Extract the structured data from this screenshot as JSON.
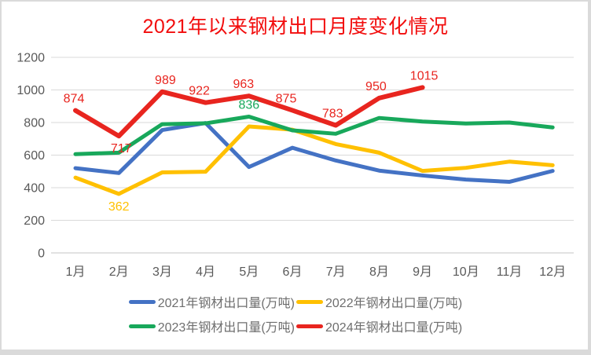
{
  "title": "2021年以来钢材出口月度变化情况",
  "colors": {
    "title": "#f20d0d",
    "axis_text": "#595959",
    "gridline": "#d9d9d9",
    "background": "#ffffff",
    "frame": "#dadada"
  },
  "chart_data": {
    "type": "line",
    "title": "2021年以来钢材出口月度变化情况",
    "categories": [
      "1月",
      "2月",
      "3月",
      "4月",
      "5月",
      "6月",
      "7月",
      "8月",
      "9月",
      "10月",
      "11月",
      "12月"
    ],
    "xlabel": "",
    "ylabel": "",
    "ylim": [
      0,
      1200
    ],
    "yticks": [
      0,
      200,
      400,
      600,
      800,
      1000,
      1200
    ],
    "grid": true,
    "legend_position": "bottom",
    "series": [
      {
        "name": "2021年钢材出口量(万吨)",
        "color": "#4472c4",
        "width": 5,
        "values": [
          520,
          490,
          754,
          797,
          527,
          645,
          567,
          505,
          475,
          450,
          436,
          503
        ]
      },
      {
        "name": "2022年钢材出口量(万吨)",
        "color": "#ffc000",
        "width": 5,
        "values": [
          462,
          362,
          494,
          498,
          776,
          756,
          668,
          615,
          503,
          522,
          560,
          538
        ]
      },
      {
        "name": "2023年钢材出口量(万吨)",
        "color": "#18a85b",
        "width": 5,
        "values": [
          606,
          615,
          790,
          795,
          836,
          752,
          731,
          828,
          806,
          794,
          800,
          770
        ]
      },
      {
        "name": "2024年钢材出口量(万吨)",
        "color": "#e8251f",
        "width": 6,
        "values": [
          874,
          717,
          989,
          922,
          963,
          875,
          783,
          950,
          1015
        ]
      }
    ],
    "point_labels": [
      {
        "series": 3,
        "month": 0,
        "text": "874",
        "placement": "above",
        "dx": -2
      },
      {
        "series": 3,
        "month": 1,
        "text": "717",
        "placement": "below",
        "dx": 3
      },
      {
        "series": 3,
        "month": 2,
        "text": "989",
        "placement": "above",
        "dx": 4
      },
      {
        "series": 3,
        "month": 3,
        "text": "922",
        "placement": "above",
        "dx": -8
      },
      {
        "series": 3,
        "month": 4,
        "text": "963",
        "placement": "above",
        "dx": -7
      },
      {
        "series": 3,
        "month": 5,
        "text": "875",
        "placement": "above",
        "dx": -8
      },
      {
        "series": 3,
        "month": 6,
        "text": "783",
        "placement": "above",
        "dx": -4
      },
      {
        "series": 3,
        "month": 7,
        "text": "950",
        "placement": "above",
        "dx": -4
      },
      {
        "series": 3,
        "month": 8,
        "text": "1015",
        "placement": "above",
        "dx": 2
      },
      {
        "series": 2,
        "month": 4,
        "text": "836",
        "placement": "above"
      },
      {
        "series": 1,
        "month": 1,
        "text": "362",
        "placement": "below"
      }
    ]
  }
}
